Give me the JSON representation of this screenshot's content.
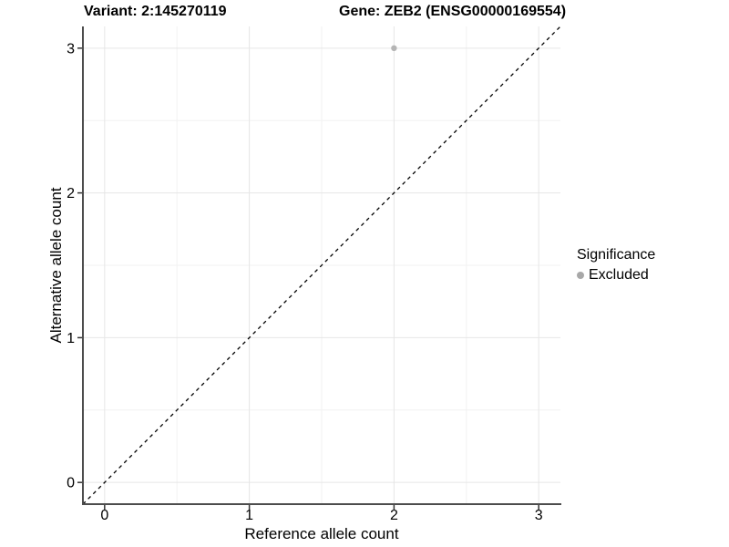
{
  "chart_data": {
    "type": "scatter",
    "title_left": "Variant: 2:145270119",
    "title_right": "Gene: ZEB2 (ENSG00000169554)",
    "xlabel": "Reference allele count",
    "ylabel": "Alternative allele count",
    "xlim": [
      -0.15,
      3.15
    ],
    "ylim": [
      -0.15,
      3.15
    ],
    "xticks": [
      0,
      1,
      2,
      3
    ],
    "yticks": [
      0,
      1,
      2,
      3
    ],
    "minor_ticks": [
      0.5,
      1.5,
      2.5
    ],
    "grid": "major+minor, no panel border, axis lines left+bottom only",
    "reference_line": {
      "type": "identity y=x",
      "style": "dashed",
      "color": "#000000"
    },
    "series": [
      {
        "name": "Excluded",
        "color": "#b5b5b5",
        "points": [
          {
            "x": 2,
            "y": 3
          }
        ]
      }
    ],
    "legend": {
      "title": "Significance",
      "position": "right",
      "items": [
        {
          "label": "Excluded",
          "color": "#a8a8a8"
        }
      ]
    }
  },
  "colors": {
    "background": "#ffffff",
    "grid_major": "#e6e6e6",
    "grid_minor": "#f2f2f2",
    "axis_line": "#4d4d4d",
    "tick_mark": "#333333",
    "text": "#000000"
  }
}
